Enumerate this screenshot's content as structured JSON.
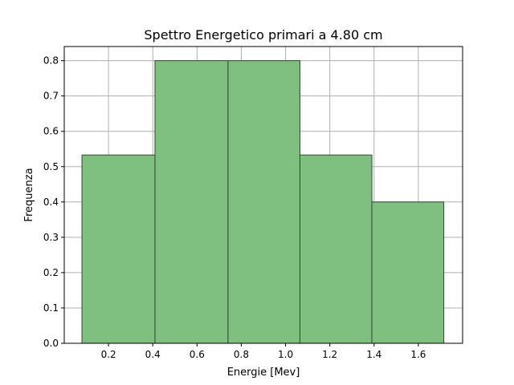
{
  "chart_data": {
    "type": "bar",
    "title": "Spettro Energetico primari a 4.80 cm",
    "xlabel": "Energie [Mev]",
    "ylabel": "Frequenza",
    "bins": [
      {
        "x0": 0.08,
        "x1": 0.41,
        "value": 0.533
      },
      {
        "x0": 0.41,
        "x1": 0.74,
        "value": 0.8
      },
      {
        "x0": 0.74,
        "x1": 1.065,
        "value": 0.8
      },
      {
        "x0": 1.065,
        "x1": 1.39,
        "value": 0.533
      },
      {
        "x0": 1.39,
        "x1": 1.715,
        "value": 0.4
      }
    ],
    "xlim": [
      0.0,
      1.8
    ],
    "ylim": [
      0.0,
      0.84
    ],
    "xticks": [
      0.2,
      0.4,
      0.6,
      0.8,
      1.0,
      1.2,
      1.4,
      1.6
    ],
    "xtick_labels": [
      "0.2",
      "0.4",
      "0.6",
      "0.8",
      "1.0",
      "1.2",
      "1.4",
      "1.6"
    ],
    "yticks": [
      0.0,
      0.1,
      0.2,
      0.3,
      0.4,
      0.5,
      0.6,
      0.7,
      0.8
    ],
    "ytick_labels": [
      "0.0",
      "0.1",
      "0.2",
      "0.3",
      "0.4",
      "0.5",
      "0.6",
      "0.7",
      "0.8"
    ],
    "grid": true,
    "bar_color": "#7fbf7f",
    "bar_edge_color": "#2e4a2e"
  }
}
